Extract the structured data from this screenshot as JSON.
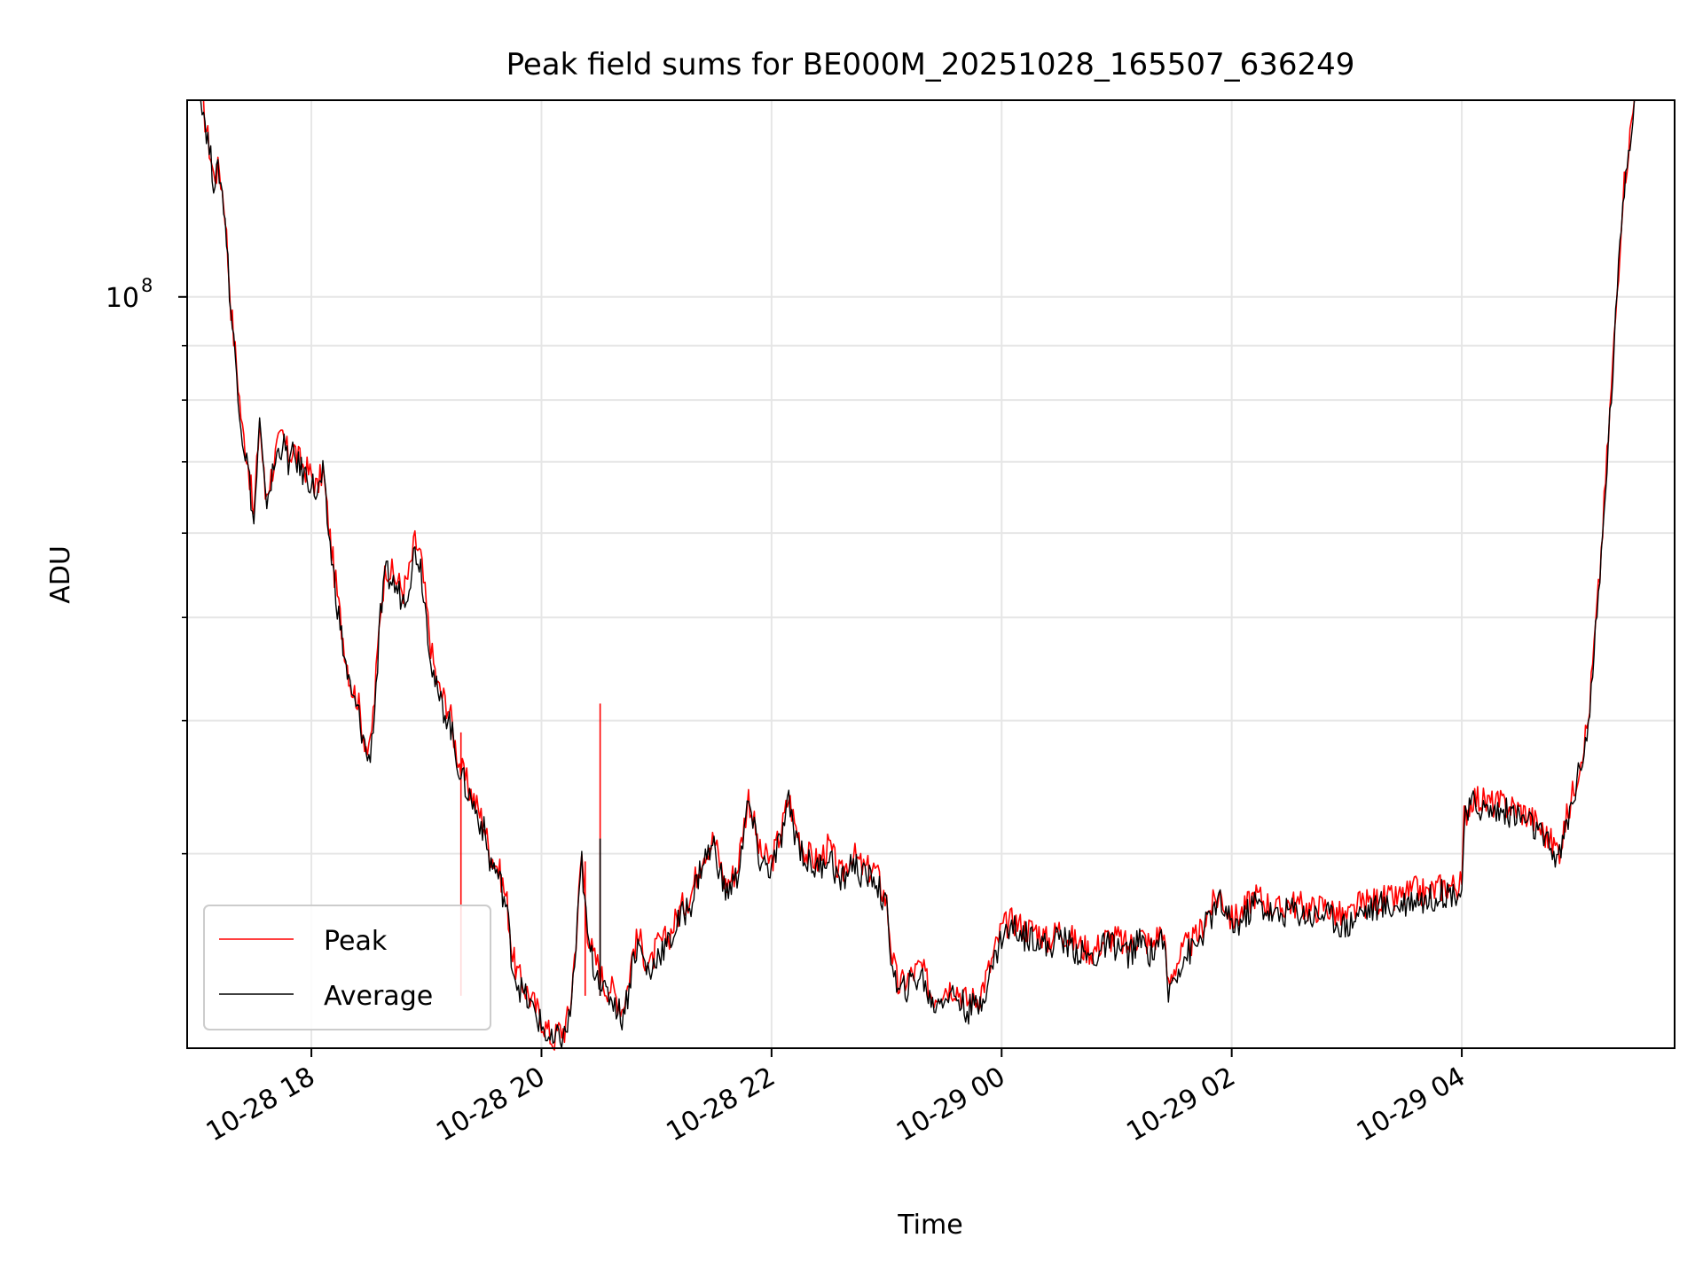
{
  "chart_data": {
    "type": "line",
    "title": "Peak field sums for BE000M_20251028_165507_636249",
    "xlabel": "Time",
    "ylabel": "ADU",
    "x_tick_labels": [
      "10-28 18",
      "10-28 20",
      "10-28 22",
      "10-29 00",
      "10-29 02",
      "10-29 04"
    ],
    "x_tick_hours": [
      18,
      20,
      22,
      24,
      26,
      28
    ],
    "xlim_hours": [
      16.92,
      29.85
    ],
    "y_scale": "log",
    "ylim": [
      19700000,
      153000000
    ],
    "y_major_ticks": [
      100000000
    ],
    "y_major_tick_labels": [
      {
        "base": "10",
        "exp": "8"
      }
    ],
    "y_minor_ticks": [
      30000000,
      40000000,
      50000000,
      60000000,
      70000000,
      80000000,
      90000000,
      200000000
    ],
    "grid": true,
    "legend": {
      "position": "lower-left",
      "entries": [
        "Peak",
        "Average"
      ]
    },
    "series": [
      {
        "name": "Peak",
        "color": "#ff0000",
        "x_hours": [
          16.92,
          17.05,
          17.15,
          17.2,
          17.25,
          17.3,
          17.35,
          17.4,
          17.45,
          17.5,
          17.55,
          17.6,
          17.65,
          17.7,
          17.75,
          17.8,
          17.85,
          17.9,
          17.95,
          18.0,
          18.05,
          18.1,
          18.15,
          18.2,
          18.25,
          18.3,
          18.35,
          18.4,
          18.45,
          18.5,
          18.55,
          18.6,
          18.65,
          18.7,
          18.75,
          18.8,
          18.85,
          18.9,
          18.95,
          19.0,
          19.05,
          19.1,
          19.15,
          19.2,
          19.25,
          19.3,
          19.35,
          19.4,
          19.45,
          19.5,
          19.55,
          19.6,
          19.65,
          19.7,
          19.75,
          19.8,
          19.85,
          19.9,
          19.95,
          20.0,
          20.05,
          20.1,
          20.15,
          20.2,
          20.25,
          20.3,
          20.35,
          20.4,
          20.45,
          20.5,
          20.55,
          20.6,
          20.65,
          20.7,
          20.75,
          20.8,
          20.85,
          20.9,
          20.95,
          21.0,
          21.1,
          21.2,
          21.3,
          21.4,
          21.5,
          21.6,
          21.7,
          21.8,
          21.9,
          22.0,
          22.1,
          22.15,
          22.2,
          22.3,
          22.4,
          22.5,
          22.6,
          22.7,
          22.8,
          22.9,
          23.0,
          23.05,
          23.1,
          23.2,
          23.3,
          23.4,
          23.5,
          23.6,
          23.7,
          23.8,
          23.9,
          24.0,
          24.1,
          24.2,
          24.3,
          24.4,
          24.5,
          24.6,
          24.7,
          24.8,
          24.9,
          25.0,
          25.1,
          25.2,
          25.3,
          25.4,
          25.45,
          25.5,
          25.6,
          25.7,
          25.8,
          25.9,
          26.0,
          26.1,
          26.2,
          26.3,
          26.4,
          26.5,
          26.6,
          26.7,
          26.8,
          26.9,
          27.0,
          27.1,
          27.2,
          27.3,
          27.4,
          27.5,
          27.6,
          27.7,
          27.8,
          27.9,
          28.0,
          28.02,
          28.1,
          28.2,
          28.3,
          28.4,
          28.5,
          28.6,
          28.7,
          28.8,
          28.85,
          28.9,
          29.0,
          29.1,
          29.2,
          29.3,
          29.4,
          29.5,
          29.6,
          29.7,
          29.75,
          29.85
        ],
        "values": [
          153000000,
          153000000,
          130000000,
          132000000,
          120000000,
          98000000,
          86000000,
          75000000,
          70000000,
          62000000,
          77000000,
          65000000,
          68000000,
          72000000,
          74000000,
          71000000,
          72000000,
          70000000,
          69000000,
          68000000,
          66000000,
          69000000,
          61000000,
          55000000,
          50000000,
          46000000,
          43000000,
          42000000,
          39000000,
          37000000,
          42000000,
          51000000,
          56000000,
          55000000,
          54000000,
          53000000,
          55000000,
          59000000,
          57000000,
          51000000,
          46000000,
          43000000,
          42000000,
          41000000,
          38000000,
          36000000,
          35000000,
          34000000,
          33000000,
          32000000,
          30000000,
          29500000,
          28500000,
          27000000,
          24000000,
          23000000,
          22500000,
          22000000,
          21500000,
          21000000,
          20500000,
          20000000,
          20500000,
          20500000,
          21500000,
          25000000,
          30000000,
          25500000,
          24000000,
          23500000,
          22500000,
          22500000,
          22000000,
          21500000,
          22500000,
          24500000,
          25000000,
          24000000,
          23500000,
          24500000,
          25000000,
          26500000,
          27500000,
          30000000,
          31000000,
          28000000,
          29000000,
          34000000,
          30000000,
          29500000,
          32000000,
          34000000,
          32000000,
          30000000,
          29500000,
          30500000,
          28500000,
          30000000,
          29000000,
          29000000,
          27000000,
          24000000,
          22500000,
          23000000,
          23500000,
          22000000,
          22500000,
          22500000,
          21800000,
          22000000,
          23500000,
          25500000,
          26000000,
          25500000,
          25500000,
          24800000,
          25500000,
          25000000,
          24500000,
          24300000,
          25000000,
          25000000,
          24500000,
          25200000,
          24600000,
          25600000,
          22500000,
          23500000,
          24500000,
          25000000,
          26500000,
          27500000,
          26000000,
          26500000,
          27500000,
          27000000,
          26500000,
          27000000,
          26800000,
          26600000,
          26800000,
          26400000,
          26000000,
          26800000,
          27000000,
          27200000,
          27100000,
          27400000,
          27700000,
          27500000,
          27900000,
          28000000,
          28000000,
          32500000,
          34000000,
          33500000,
          33400000,
          33300000,
          33000000,
          32500000,
          31500000,
          30500000,
          30300000,
          32000000,
          35500000,
          40000000,
          55000000,
          82000000,
          125000000,
          153000000,
          153000000,
          153000000,
          153000000,
          153000000
        ],
        "spikes": [
          {
            "x_hours": 20.38,
            "value": 29500000
          },
          {
            "x_hours": 20.51,
            "value": 41500000
          },
          {
            "x_hours": 19.3,
            "value": 39000000
          }
        ]
      },
      {
        "name": "Average",
        "color": "#000000",
        "x_hours": [
          16.92,
          17.05,
          17.15,
          17.2,
          17.25,
          17.3,
          17.35,
          17.4,
          17.45,
          17.5,
          17.55,
          17.6,
          17.65,
          17.7,
          17.75,
          17.8,
          17.85,
          17.9,
          17.95,
          18.0,
          18.05,
          18.1,
          18.15,
          18.2,
          18.25,
          18.3,
          18.35,
          18.4,
          18.45,
          18.5,
          18.55,
          18.6,
          18.65,
          18.7,
          18.75,
          18.8,
          18.85,
          18.9,
          18.95,
          19.0,
          19.05,
          19.1,
          19.15,
          19.2,
          19.25,
          19.3,
          19.35,
          19.4,
          19.45,
          19.5,
          19.55,
          19.6,
          19.65,
          19.7,
          19.75,
          19.8,
          19.85,
          19.9,
          19.95,
          20.0,
          20.05,
          20.1,
          20.15,
          20.2,
          20.25,
          20.3,
          20.35,
          20.4,
          20.45,
          20.5,
          20.55,
          20.6,
          20.65,
          20.7,
          20.75,
          20.8,
          20.85,
          20.9,
          20.95,
          21.0,
          21.1,
          21.2,
          21.3,
          21.4,
          21.5,
          21.6,
          21.7,
          21.8,
          21.9,
          22.0,
          22.1,
          22.15,
          22.2,
          22.3,
          22.4,
          22.5,
          22.6,
          22.7,
          22.8,
          22.9,
          23.0,
          23.05,
          23.1,
          23.2,
          23.3,
          23.4,
          23.5,
          23.6,
          23.7,
          23.8,
          23.9,
          24.0,
          24.1,
          24.2,
          24.3,
          24.4,
          24.5,
          24.6,
          24.7,
          24.8,
          24.9,
          25.0,
          25.1,
          25.2,
          25.3,
          25.4,
          25.45,
          25.5,
          25.6,
          25.7,
          25.8,
          25.9,
          26.0,
          26.1,
          26.2,
          26.3,
          26.4,
          26.5,
          26.6,
          26.7,
          26.8,
          26.9,
          27.0,
          27.1,
          27.2,
          27.3,
          27.4,
          27.5,
          27.6,
          27.7,
          27.8,
          27.9,
          28.0,
          28.02,
          28.1,
          28.2,
          28.3,
          28.4,
          28.5,
          28.6,
          28.7,
          28.8,
          28.85,
          28.9,
          29.0,
          29.1,
          29.2,
          29.3,
          29.4,
          29.5,
          29.6,
          29.7,
          29.75,
          29.85
        ],
        "values": [
          153000000,
          153000000,
          129000000,
          131000000,
          119000000,
          97000000,
          85000000,
          74000000,
          69000000,
          61000000,
          76000000,
          64000000,
          67000000,
          71000000,
          73000000,
          70000000,
          71000000,
          69000000,
          68000000,
          67000000,
          65000000,
          68000000,
          60000000,
          54000000,
          49000000,
          45000000,
          42000000,
          41000000,
          38500000,
          36500000,
          41000000,
          50000000,
          55000000,
          54000000,
          53000000,
          52000000,
          54000000,
          58000000,
          56000000,
          50000000,
          45000000,
          42000000,
          41000000,
          40000000,
          37500000,
          35500000,
          34500000,
          33500000,
          32500000,
          31500000,
          29500000,
          29000000,
          28000000,
          26500000,
          23500000,
          22600000,
          22100000,
          21600000,
          21200000,
          20700000,
          20200000,
          19800000,
          20200000,
          20200000,
          21200000,
          24500000,
          29500000,
          25000000,
          23600000,
          23100000,
          22100000,
          22100000,
          21600000,
          21100000,
          22100000,
          24100000,
          24600000,
          23600000,
          23100000,
          24100000,
          24600000,
          26000000,
          27000000,
          29500000,
          30500000,
          27500000,
          28500000,
          33500000,
          29500000,
          29000000,
          31500000,
          33500000,
          31500000,
          29500000,
          29000000,
          30000000,
          28000000,
          29500000,
          28500000,
          28500000,
          26500000,
          23600000,
          22100000,
          22600000,
          23100000,
          21600000,
          22100000,
          22100000,
          21400000,
          21600000,
          23100000,
          25100000,
          25600000,
          25100000,
          25100000,
          24400000,
          25100000,
          24600000,
          24100000,
          23900000,
          24600000,
          24600000,
          24100000,
          24800000,
          24200000,
          25200000,
          22100000,
          23100000,
          24100000,
          24600000,
          26000000,
          27000000,
          25600000,
          26000000,
          27000000,
          26600000,
          26100000,
          26600000,
          26400000,
          26200000,
          26400000,
          26000000,
          25600000,
          26400000,
          26600000,
          26800000,
          26700000,
          27000000,
          27300000,
          27100000,
          27500000,
          27600000,
          27600000,
          32000000,
          33500000,
          33000000,
          32900000,
          32800000,
          32500000,
          32000000,
          31000000,
          30000000,
          29800000,
          31500000,
          35000000,
          39500000,
          54000000,
          81000000,
          124000000,
          153000000,
          153000000,
          153000000,
          153000000,
          153000000
        ],
        "spikes": [
          {
            "x_hours": 20.51,
            "value": 31000000
          }
        ]
      }
    ]
  }
}
